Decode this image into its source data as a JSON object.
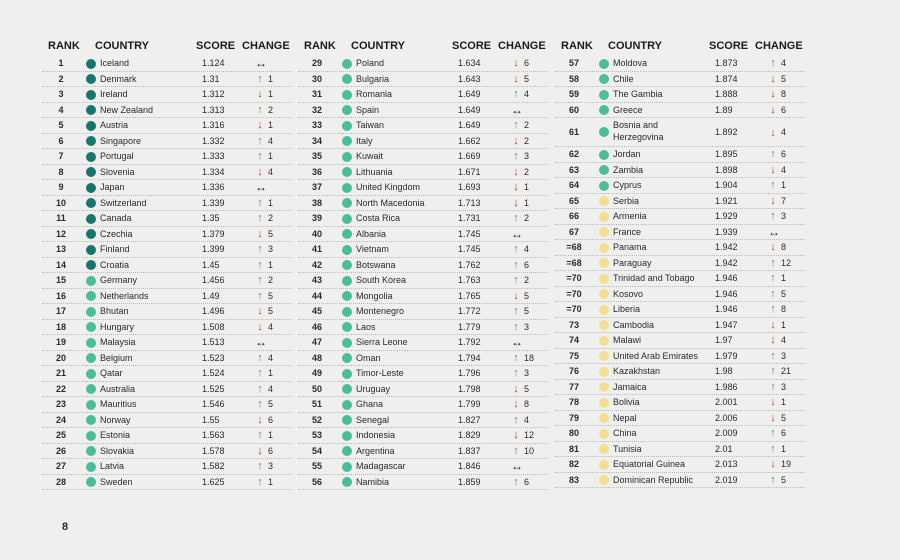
{
  "headers": {
    "rank": "RANK",
    "country": "COUNTRY",
    "score": "SCORE",
    "change": "CHANGE"
  },
  "colors": {
    "very_high": "#17756e",
    "high": "#4dbc9c",
    "medium": "#f4de93",
    "up": "#4a9a6b",
    "down": "#c8372a"
  },
  "page_number": "8",
  "columns": [
    [
      {
        "rank": "1",
        "country": "Iceland",
        "score": "1.124",
        "dir": "same",
        "change": "",
        "level": "very_high"
      },
      {
        "rank": "2",
        "country": "Denmark",
        "score": "1.31",
        "dir": "up",
        "change": "1",
        "level": "very_high"
      },
      {
        "rank": "3",
        "country": "Ireland",
        "score": "1.312",
        "dir": "down",
        "change": "1",
        "level": "very_high"
      },
      {
        "rank": "4",
        "country": "New Zealand",
        "score": "1.313",
        "dir": "up",
        "change": "2",
        "level": "very_high"
      },
      {
        "rank": "5",
        "country": "Austria",
        "score": "1.316",
        "dir": "down",
        "change": "1",
        "level": "very_high"
      },
      {
        "rank": "6",
        "country": "Singapore",
        "score": "1.332",
        "dir": "up",
        "change": "4",
        "level": "very_high"
      },
      {
        "rank": "7",
        "country": "Portugal",
        "score": "1.333",
        "dir": "up",
        "change": "1",
        "level": "very_high"
      },
      {
        "rank": "8",
        "country": "Slovenia",
        "score": "1.334",
        "dir": "down",
        "change": "4",
        "level": "very_high"
      },
      {
        "rank": "9",
        "country": "Japan",
        "score": "1.336",
        "dir": "same",
        "change": "",
        "level": "very_high"
      },
      {
        "rank": "10",
        "country": "Switzerland",
        "score": "1.339",
        "dir": "up",
        "change": "1",
        "level": "very_high"
      },
      {
        "rank": "11",
        "country": "Canada",
        "score": "1.35",
        "dir": "up",
        "change": "2",
        "level": "very_high"
      },
      {
        "rank": "12",
        "country": "Czechia",
        "score": "1.379",
        "dir": "down",
        "change": "5",
        "level": "very_high"
      },
      {
        "rank": "13",
        "country": "Finland",
        "score": "1.399",
        "dir": "up",
        "change": "3",
        "level": "very_high"
      },
      {
        "rank": "14",
        "country": "Croatia",
        "score": "1.45",
        "dir": "up",
        "change": "1",
        "level": "very_high"
      },
      {
        "rank": "15",
        "country": "Germany",
        "score": "1.456",
        "dir": "up",
        "change": "2",
        "level": "high"
      },
      {
        "rank": "16",
        "country": "Netherlands",
        "score": "1.49",
        "dir": "up",
        "change": "5",
        "level": "high"
      },
      {
        "rank": "17",
        "country": "Bhutan",
        "score": "1.496",
        "dir": "down",
        "change": "5",
        "level": "high"
      },
      {
        "rank": "18",
        "country": "Hungary",
        "score": "1.508",
        "dir": "down",
        "change": "4",
        "level": "high"
      },
      {
        "rank": "19",
        "country": "Malaysia",
        "score": "1.513",
        "dir": "same",
        "change": "",
        "level": "high"
      },
      {
        "rank": "20",
        "country": "Belgium",
        "score": "1.523",
        "dir": "up",
        "change": "4",
        "level": "high"
      },
      {
        "rank": "21",
        "country": "Qatar",
        "score": "1.524",
        "dir": "up",
        "change": "1",
        "level": "high"
      },
      {
        "rank": "22",
        "country": "Australia",
        "score": "1.525",
        "dir": "up",
        "change": "4",
        "level": "high"
      },
      {
        "rank": "23",
        "country": "Mauritius",
        "score": "1.546",
        "dir": "up",
        "change": "5",
        "level": "high"
      },
      {
        "rank": "24",
        "country": "Norway",
        "score": "1.55",
        "dir": "down",
        "change": "6",
        "level": "high"
      },
      {
        "rank": "25",
        "country": "Estonia",
        "score": "1.563",
        "dir": "up",
        "change": "1",
        "level": "high"
      },
      {
        "rank": "26",
        "country": "Slovakia",
        "score": "1.578",
        "dir": "down",
        "change": "6",
        "level": "high"
      },
      {
        "rank": "27",
        "country": "Latvia",
        "score": "1.582",
        "dir": "up",
        "change": "3",
        "level": "high"
      },
      {
        "rank": "28",
        "country": "Sweden",
        "score": "1.625",
        "dir": "up",
        "change": "1",
        "level": "high"
      }
    ],
    [
      {
        "rank": "29",
        "country": "Poland",
        "score": "1.634",
        "dir": "down",
        "change": "6",
        "level": "high"
      },
      {
        "rank": "30",
        "country": "Bulgaria",
        "score": "1.643",
        "dir": "down",
        "change": "5",
        "level": "high"
      },
      {
        "rank": "31",
        "country": "Romania",
        "score": "1.649",
        "dir": "up",
        "change": "4",
        "level": "high"
      },
      {
        "rank": "32",
        "country": "Spain",
        "score": "1.649",
        "dir": "same",
        "change": "",
        "level": "high"
      },
      {
        "rank": "33",
        "country": "Taiwan",
        "score": "1.649",
        "dir": "up",
        "change": "2",
        "level": "high"
      },
      {
        "rank": "34",
        "country": "Italy",
        "score": "1.662",
        "dir": "down",
        "change": "2",
        "level": "high"
      },
      {
        "rank": "35",
        "country": "Kuwait",
        "score": "1.669",
        "dir": "up",
        "change": "3",
        "level": "high"
      },
      {
        "rank": "36",
        "country": "Lithuania",
        "score": "1.671",
        "dir": "down",
        "change": "2",
        "level": "high"
      },
      {
        "rank": "37",
        "country": "United Kingdom",
        "score": "1.693",
        "dir": "down",
        "change": "1",
        "level": "high"
      },
      {
        "rank": "38",
        "country": "North Macedonia",
        "score": "1.713",
        "dir": "down",
        "change": "1",
        "level": "high"
      },
      {
        "rank": "39",
        "country": "Costa Rica",
        "score": "1.731",
        "dir": "up",
        "change": "2",
        "level": "high"
      },
      {
        "rank": "40",
        "country": "Albania",
        "score": "1.745",
        "dir": "same",
        "change": "",
        "level": "high"
      },
      {
        "rank": "41",
        "country": "Vietnam",
        "score": "1.745",
        "dir": "up",
        "change": "4",
        "level": "high"
      },
      {
        "rank": "42",
        "country": "Botswana",
        "score": "1.762",
        "dir": "up",
        "change": "6",
        "level": "high"
      },
      {
        "rank": "43",
        "country": "South Korea",
        "score": "1.763",
        "dir": "up",
        "change": "2",
        "level": "high"
      },
      {
        "rank": "44",
        "country": "Mongolia",
        "score": "1.765",
        "dir": "down",
        "change": "5",
        "level": "high"
      },
      {
        "rank": "45",
        "country": "Montenegro",
        "score": "1.772",
        "dir": "up",
        "change": "5",
        "level": "high"
      },
      {
        "rank": "46",
        "country": "Laos",
        "score": "1.779",
        "dir": "up",
        "change": "3",
        "level": "high"
      },
      {
        "rank": "47",
        "country": "Sierra Leone",
        "score": "1.792",
        "dir": "same",
        "change": "",
        "level": "high"
      },
      {
        "rank": "48",
        "country": "Oman",
        "score": "1.794",
        "dir": "up",
        "change": "18",
        "level": "high"
      },
      {
        "rank": "49",
        "country": "Timor-Leste",
        "score": "1.796",
        "dir": "up",
        "change": "3",
        "level": "high"
      },
      {
        "rank": "50",
        "country": "Uruguay",
        "score": "1.798",
        "dir": "down",
        "change": "5",
        "level": "high"
      },
      {
        "rank": "51",
        "country": "Ghana",
        "score": "1.799",
        "dir": "down",
        "change": "8",
        "level": "high"
      },
      {
        "rank": "52",
        "country": "Senegal",
        "score": "1.827",
        "dir": "up",
        "change": "4",
        "level": "high"
      },
      {
        "rank": "53",
        "country": "Indonesia",
        "score": "1.829",
        "dir": "down",
        "change": "12",
        "level": "high"
      },
      {
        "rank": "54",
        "country": "Argentina",
        "score": "1.837",
        "dir": "up",
        "change": "10",
        "level": "high"
      },
      {
        "rank": "55",
        "country": "Madagascar",
        "score": "1.846",
        "dir": "same",
        "change": "",
        "level": "high"
      },
      {
        "rank": "56",
        "country": "Namibia",
        "score": "1.859",
        "dir": "up",
        "change": "6",
        "level": "high"
      }
    ],
    [
      {
        "rank": "57",
        "country": "Moldova",
        "score": "1.873",
        "dir": "up",
        "change": "4",
        "level": "high"
      },
      {
        "rank": "58",
        "country": "Chile",
        "score": "1.874",
        "dir": "down",
        "change": "5",
        "level": "high"
      },
      {
        "rank": "59",
        "country": "The Gambia",
        "score": "1.888",
        "dir": "down",
        "change": "8",
        "level": "high"
      },
      {
        "rank": "60",
        "country": "Greece",
        "score": "1.89",
        "dir": "down",
        "change": "6",
        "level": "high"
      },
      {
        "rank": "61",
        "country": "Bosnia and Herzegovina",
        "score": "1.892",
        "dir": "down",
        "change": "4",
        "level": "high",
        "tall": true
      },
      {
        "rank": "62",
        "country": "Jordan",
        "score": "1.895",
        "dir": "up",
        "change": "6",
        "level": "high"
      },
      {
        "rank": "63",
        "country": "Zambia",
        "score": "1.898",
        "dir": "down",
        "change": "4",
        "level": "high"
      },
      {
        "rank": "64",
        "country": "Cyprus",
        "score": "1.904",
        "dir": "up",
        "change": "1",
        "level": "high"
      },
      {
        "rank": "65",
        "country": "Serbia",
        "score": "1.921",
        "dir": "down",
        "change": "7",
        "level": "medium"
      },
      {
        "rank": "66",
        "country": "Armenia",
        "score": "1.929",
        "dir": "up",
        "change": "3",
        "level": "medium"
      },
      {
        "rank": "67",
        "country": "France",
        "score": "1.939",
        "dir": "same",
        "change": "",
        "level": "medium"
      },
      {
        "rank": "=68",
        "country": "Panama",
        "score": "1.942",
        "dir": "down",
        "change": "8",
        "level": "medium"
      },
      {
        "rank": "=68",
        "country": "Paraguay",
        "score": "1.942",
        "dir": "up",
        "change": "12",
        "level": "medium"
      },
      {
        "rank": "=70",
        "country": "Trinidad and Tobago",
        "score": "1.946",
        "dir": "up",
        "change": "1",
        "level": "medium"
      },
      {
        "rank": "=70",
        "country": "Kosovo",
        "score": "1.946",
        "dir": "up",
        "change": "5",
        "level": "medium"
      },
      {
        "rank": "=70",
        "country": "Liberia",
        "score": "1.946",
        "dir": "up",
        "change": "8",
        "level": "medium"
      },
      {
        "rank": "73",
        "country": "Cambodia",
        "score": "1.947",
        "dir": "down",
        "change": "1",
        "level": "medium"
      },
      {
        "rank": "74",
        "country": "Malawi",
        "score": "1.97",
        "dir": "down",
        "change": "4",
        "level": "medium"
      },
      {
        "rank": "75",
        "country": "United Arab Emirates",
        "score": "1.979",
        "dir": "up",
        "change": "3",
        "level": "medium"
      },
      {
        "rank": "76",
        "country": "Kazakhstan",
        "score": "1.98",
        "dir": "up",
        "change": "21",
        "level": "medium"
      },
      {
        "rank": "77",
        "country": "Jamaica",
        "score": "1.986",
        "dir": "up",
        "change": "3",
        "level": "medium"
      },
      {
        "rank": "78",
        "country": "Bolivia",
        "score": "2.001",
        "dir": "down",
        "change": "1",
        "level": "medium"
      },
      {
        "rank": "79",
        "country": "Nepal",
        "score": "2.006",
        "dir": "down",
        "change": "5",
        "level": "medium"
      },
      {
        "rank": "80",
        "country": "China",
        "score": "2.009",
        "dir": "up",
        "change": "6",
        "level": "medium"
      },
      {
        "rank": "81",
        "country": "Tunisia",
        "score": "2.01",
        "dir": "up",
        "change": "1",
        "level": "medium"
      },
      {
        "rank": "82",
        "country": "Equatorial Guinea",
        "score": "2.013",
        "dir": "down",
        "change": "19",
        "level": "medium"
      },
      {
        "rank": "83",
        "country": "Dominican Republic",
        "score": "2.019",
        "dir": "up",
        "change": "5",
        "level": "medium"
      }
    ]
  ]
}
